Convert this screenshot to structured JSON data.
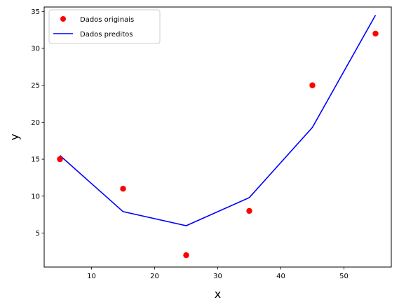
{
  "chart_data": {
    "type": "line",
    "title": "",
    "xlabel": "x",
    "ylabel": "y",
    "xlim": [
      2.5,
      57.5
    ],
    "ylim": [
      0.4,
      35.6
    ],
    "xticks": [
      10,
      20,
      30,
      40,
      50
    ],
    "yticks": [
      5,
      10,
      15,
      20,
      25,
      30,
      35
    ],
    "grid": false,
    "legend": "top-left",
    "series": [
      {
        "name": "Dados originais",
        "kind": "scatter",
        "color": "#ff0000",
        "x": [
          5,
          15,
          25,
          35,
          45,
          55
        ],
        "y": [
          15,
          11,
          2,
          8,
          25,
          32
        ]
      },
      {
        "name": "Dados preditos",
        "kind": "line",
        "color": "#0000ff",
        "x": [
          5,
          15,
          25,
          35,
          45,
          55
        ],
        "y": [
          15.5,
          7.9,
          6.0,
          9.8,
          19.3,
          34.5
        ]
      }
    ]
  }
}
